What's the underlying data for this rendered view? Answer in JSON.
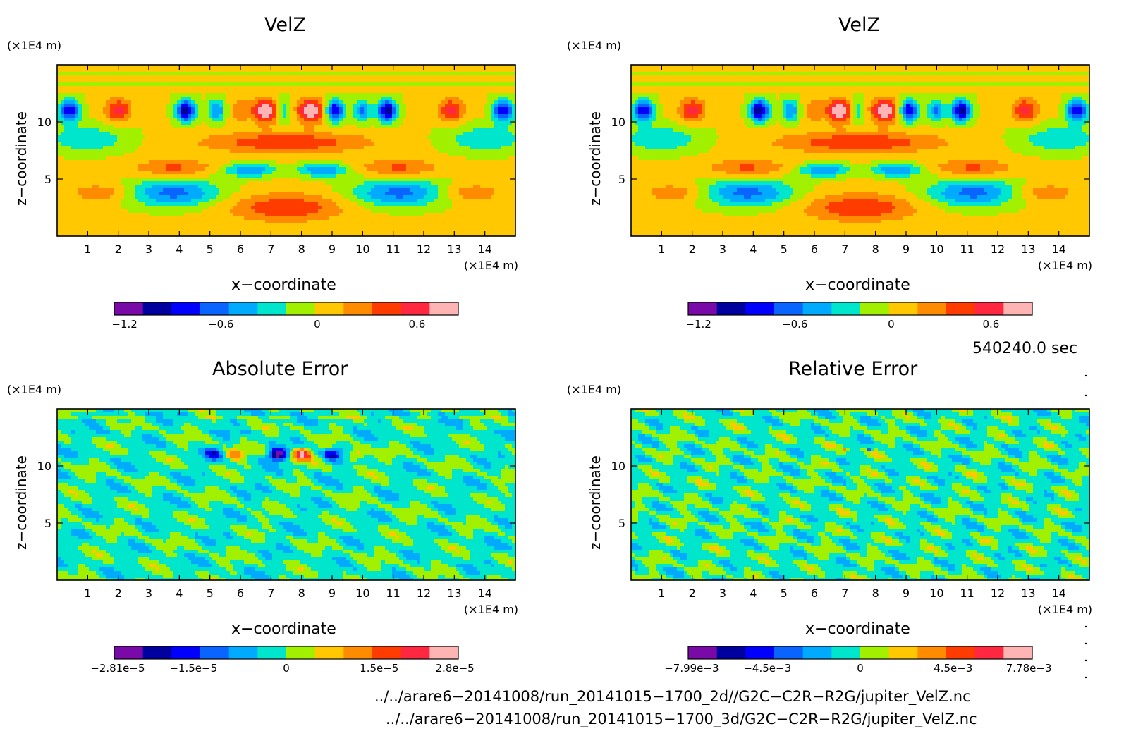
{
  "chart_data": [
    {
      "type": "heatmap",
      "title": "VelZ",
      "xlabel": "x−coordinate",
      "ylabel": "z−coordinate",
      "x_unit": "(×1E4 m)",
      "y_unit": "(×1E4 m)",
      "xlim": [
        0,
        15
      ],
      "ylim": [
        0,
        15
      ],
      "xticks": [
        "1",
        "2",
        "3",
        "4",
        "5",
        "6",
        "7",
        "8",
        "9",
        "10",
        "11",
        "12",
        "13",
        "14"
      ],
      "yticks": [
        "5",
        "10"
      ],
      "colorbar": {
        "range": [
          -1.2,
          0.75
        ],
        "labels": [
          "−1.2",
          "−0.6",
          "0",
          "0.6"
        ]
      }
    },
    {
      "type": "heatmap",
      "title": "VelZ",
      "xlabel": "x−coordinate",
      "ylabel": "z−coordinate",
      "x_unit": "(×1E4 m)",
      "y_unit": "(×1E4 m)",
      "xlim": [
        0,
        15
      ],
      "ylim": [
        0,
        15
      ],
      "xticks": [
        "1",
        "2",
        "3",
        "4",
        "5",
        "6",
        "7",
        "8",
        "9",
        "10",
        "11",
        "12",
        "13",
        "14"
      ],
      "yticks": [
        "5",
        "10"
      ],
      "colorbar": {
        "range": [
          -1.2,
          0.75
        ],
        "labels": [
          "−1.2",
          "−0.6",
          "0",
          "0.6"
        ]
      }
    },
    {
      "type": "heatmap",
      "title": "Absolute Error",
      "xlabel": "x−coordinate",
      "ylabel": "z−coordinate",
      "x_unit": "(×1E4 m)",
      "y_unit": "(×1E4 m)",
      "xlim": [
        0,
        15
      ],
      "ylim": [
        0,
        15
      ],
      "xticks": [
        "1",
        "2",
        "3",
        "4",
        "5",
        "6",
        "7",
        "8",
        "9",
        "10",
        "11",
        "12",
        "13",
        "14"
      ],
      "yticks": [
        "5",
        "10"
      ],
      "colorbar": {
        "range": [
          -2.81e-05,
          2.8e-05
        ],
        "labels": [
          "−2.81e−5",
          "−1.5e−5",
          "0",
          "1.5e−5",
          "2.8e−5"
        ]
      }
    },
    {
      "type": "heatmap",
      "title": "Relative Error",
      "xlabel": "x−coordinate",
      "ylabel": "z−coordinate",
      "x_unit": "(×1E4 m)",
      "y_unit": "(×1E4 m)",
      "xlim": [
        0,
        15
      ],
      "ylim": [
        0,
        15
      ],
      "xticks": [
        "1",
        "2",
        "3",
        "4",
        "5",
        "6",
        "7",
        "8",
        "9",
        "10",
        "11",
        "12",
        "13",
        "14"
      ],
      "yticks": [
        "5",
        "10"
      ],
      "colorbar": {
        "range": [
          -0.00799,
          0.00778
        ],
        "labels": [
          "−7.99e−3",
          "−4.5e−3",
          "0",
          "4.5e−3",
          "7.78e−3"
        ]
      }
    }
  ],
  "palette": [
    "#7a0aa8",
    "#00009e",
    "#0000ff",
    "#0a64ff",
    "#00aaff",
    "#00e6cc",
    "#a0f000",
    "#ffc800",
    "#ff8c00",
    "#ff3c00",
    "#ff2840",
    "#ffb4b4"
  ],
  "time_label": "540240.0 sec",
  "file_paths": [
    "../../arare6−20141008/run_20141015−1700_2d//G2C−C2R−R2G/jupiter_VelZ.nc",
    "../../arare6−20141008/run_20141015−1700_3d/G2C−C2R−R2G/jupiter_VelZ.nc"
  ]
}
